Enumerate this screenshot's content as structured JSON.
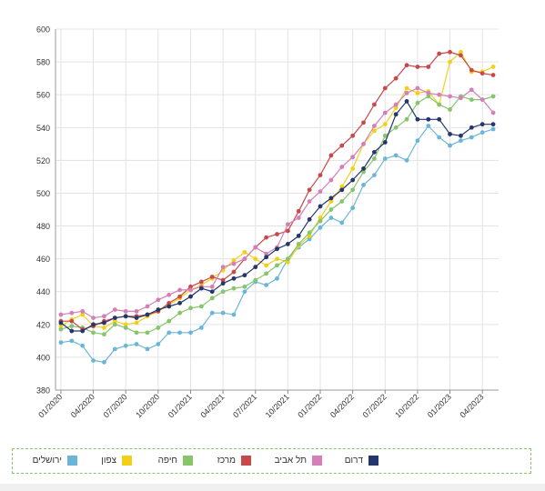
{
  "chart_data": {
    "type": "line",
    "ylim": [
      380,
      600
    ],
    "y_ticks": [
      380,
      400,
      420,
      440,
      460,
      480,
      500,
      520,
      540,
      560,
      580,
      600
    ],
    "x_ticks": [
      "01/2020",
      "04/2020",
      "07/2020",
      "10/2020",
      "01/2021",
      "04/2021",
      "07/2021",
      "10/2021",
      "01/2022",
      "04/2022",
      "07/2022",
      "10/2022",
      "01/2023",
      "04/2023"
    ],
    "x": [
      "01/2020",
      "02/2020",
      "03/2020",
      "04/2020",
      "05/2020",
      "06/2020",
      "07/2020",
      "08/2020",
      "09/2020",
      "10/2020",
      "11/2020",
      "12/2020",
      "01/2021",
      "02/2021",
      "03/2021",
      "04/2021",
      "05/2021",
      "06/2021",
      "07/2021",
      "08/2021",
      "09/2021",
      "10/2021",
      "11/2021",
      "12/2021",
      "01/2022",
      "02/2022",
      "03/2022",
      "04/2022",
      "05/2022",
      "06/2022",
      "07/2022",
      "08/2022",
      "09/2022",
      "10/2022",
      "11/2022",
      "12/2022",
      "01/2023",
      "02/2023",
      "03/2023",
      "04/2023",
      "05/2023"
    ],
    "grid": true,
    "legend_position": "bottom",
    "series": [
      {
        "name": "ירושלים",
        "color": "#6bb6d8",
        "values": [
          409,
          410,
          407,
          398,
          397,
          405,
          407,
          408,
          405,
          408,
          415,
          415,
          415,
          418,
          427,
          427,
          426,
          440,
          446,
          444,
          448,
          460,
          467,
          472,
          479,
          485,
          482,
          491,
          505,
          511,
          521,
          523,
          520,
          532,
          541,
          534,
          529,
          532,
          534,
          537,
          539
        ]
      },
      {
        "name": "צפון",
        "color": "#f2d01a",
        "values": [
          419,
          423,
          426,
          419,
          418,
          422,
          420,
          421,
          425,
          428,
          432,
          436,
          441,
          444,
          448,
          453,
          459,
          464,
          460,
          456,
          460,
          458,
          468,
          474,
          485,
          495,
          504,
          515,
          530,
          538,
          542,
          552,
          564,
          561,
          562,
          554,
          580,
          586,
          574,
          574,
          577
        ]
      },
      {
        "name": "חיפה",
        "color": "#86c56b",
        "values": [
          417,
          419,
          418,
          415,
          414,
          420,
          418,
          415,
          415,
          418,
          422,
          427,
          430,
          431,
          436,
          440,
          442,
          443,
          447,
          451,
          456,
          460,
          469,
          476,
          483,
          490,
          495,
          502,
          513,
          521,
          535,
          540,
          545,
          555,
          559,
          554,
          551,
          559,
          557,
          557,
          559
        ]
      },
      {
        "name": "מרכז",
        "color": "#c8494a",
        "values": [
          422,
          422,
          417,
          419,
          422,
          424,
          425,
          425,
          426,
          428,
          433,
          437,
          443,
          446,
          449,
          447,
          452,
          460,
          467,
          473,
          475,
          477,
          489,
          502,
          511,
          523,
          529,
          535,
          543,
          554,
          564,
          570,
          578,
          577,
          577,
          585,
          586,
          584,
          575,
          573,
          572
        ]
      },
      {
        "name": "תל אביב",
        "color": "#d47fb8",
        "values": [
          426,
          427,
          428,
          424,
          425,
          429,
          428,
          428,
          431,
          435,
          438,
          441,
          441,
          443,
          443,
          455,
          457,
          460,
          467,
          463,
          467,
          481,
          485,
          495,
          501,
          508,
          516,
          522,
          530,
          541,
          549,
          554,
          561,
          564,
          561,
          560,
          559,
          558,
          563,
          557,
          549
        ]
      },
      {
        "name": "דרום",
        "color": "#24366b",
        "values": [
          421,
          416,
          416,
          420,
          421,
          424,
          425,
          424,
          426,
          429,
          431,
          433,
          437,
          442,
          440,
          445,
          448,
          450,
          455,
          461,
          466,
          469,
          474,
          484,
          492,
          497,
          502,
          508,
          515,
          525,
          531,
          548,
          556,
          545,
          545,
          545,
          536,
          535,
          540,
          542,
          542
        ]
      }
    ]
  }
}
